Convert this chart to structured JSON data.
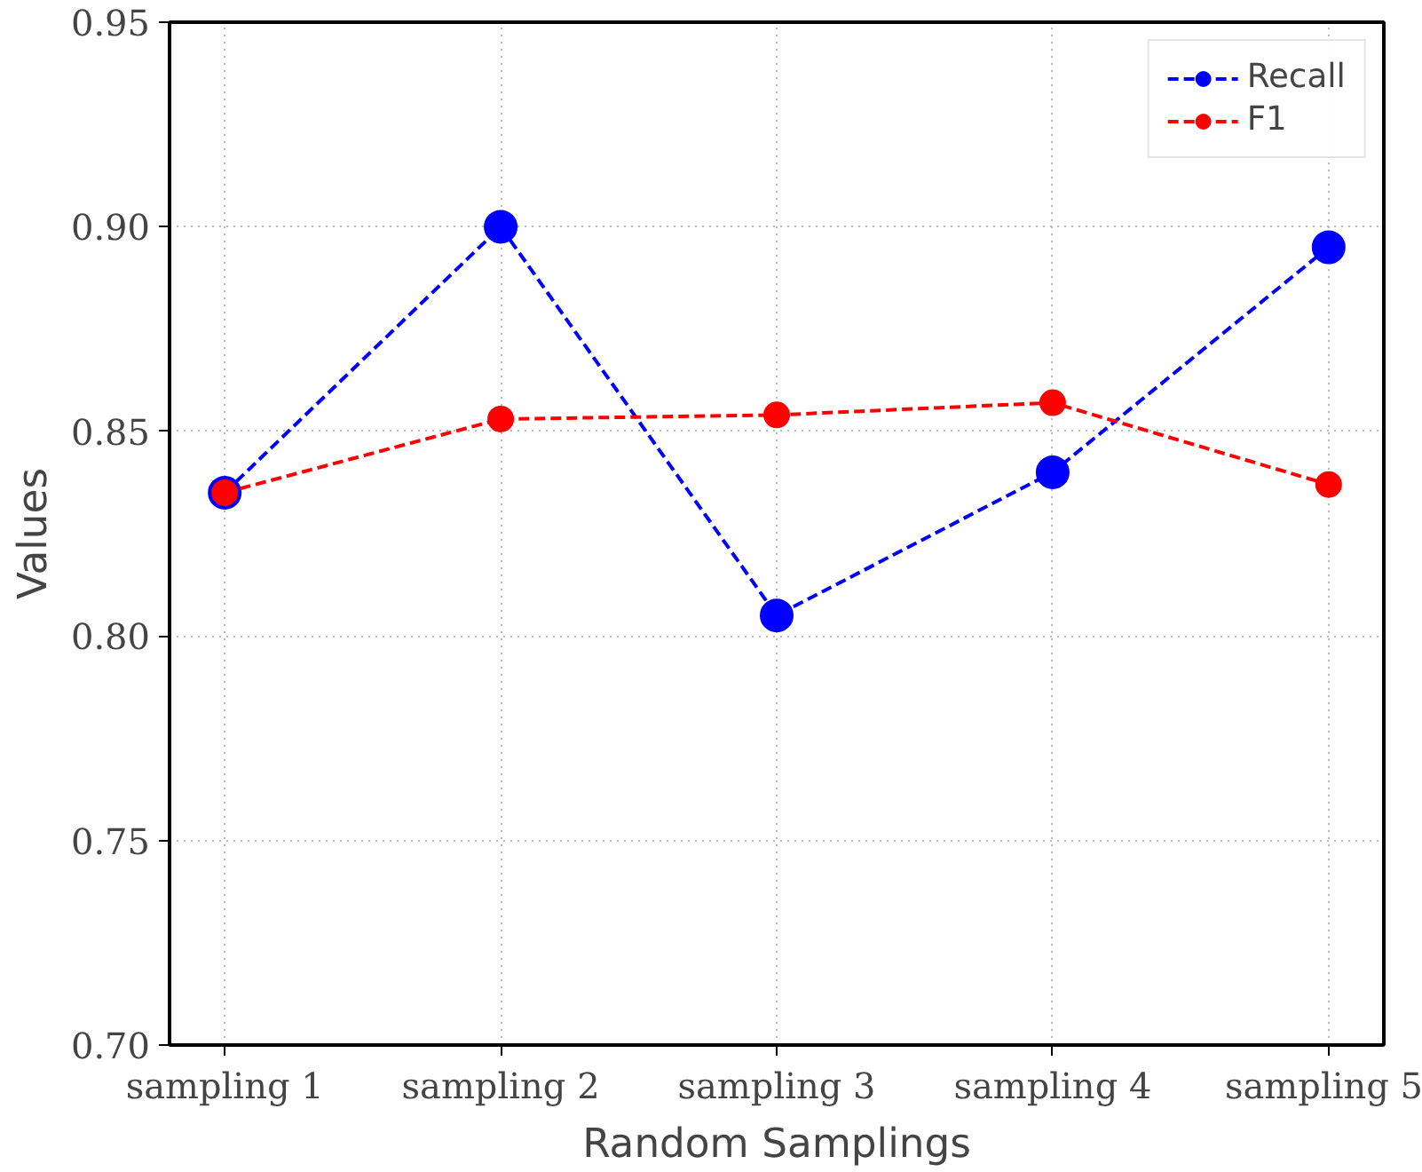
{
  "chart_data": {
    "type": "line",
    "xlabel": "Random Samplings",
    "ylabel": "Values",
    "categories": [
      "sampling 1",
      "sampling 2",
      "sampling 3",
      "sampling 4",
      "sampling 5"
    ],
    "series": [
      {
        "name": "Recall",
        "color": "#0000ff",
        "values": [
          0.835,
          0.9,
          0.805,
          0.84,
          0.895
        ]
      },
      {
        "name": "F1",
        "color": "#ff0000",
        "values": [
          0.835,
          0.853,
          0.854,
          0.857,
          0.837
        ]
      }
    ],
    "ylim": [
      0.7,
      0.95
    ],
    "yticks": [
      {
        "value": 0.7,
        "label": "0.70"
      },
      {
        "value": 0.75,
        "label": "0.75"
      },
      {
        "value": 0.8,
        "label": "0.80"
      },
      {
        "value": 0.85,
        "label": "0.85"
      },
      {
        "value": 0.9,
        "label": "0.90"
      },
      {
        "value": 0.95,
        "label": "0.95"
      }
    ],
    "grid": true,
    "legend": "top right",
    "marker": "circle",
    "line_style": "dashed"
  }
}
